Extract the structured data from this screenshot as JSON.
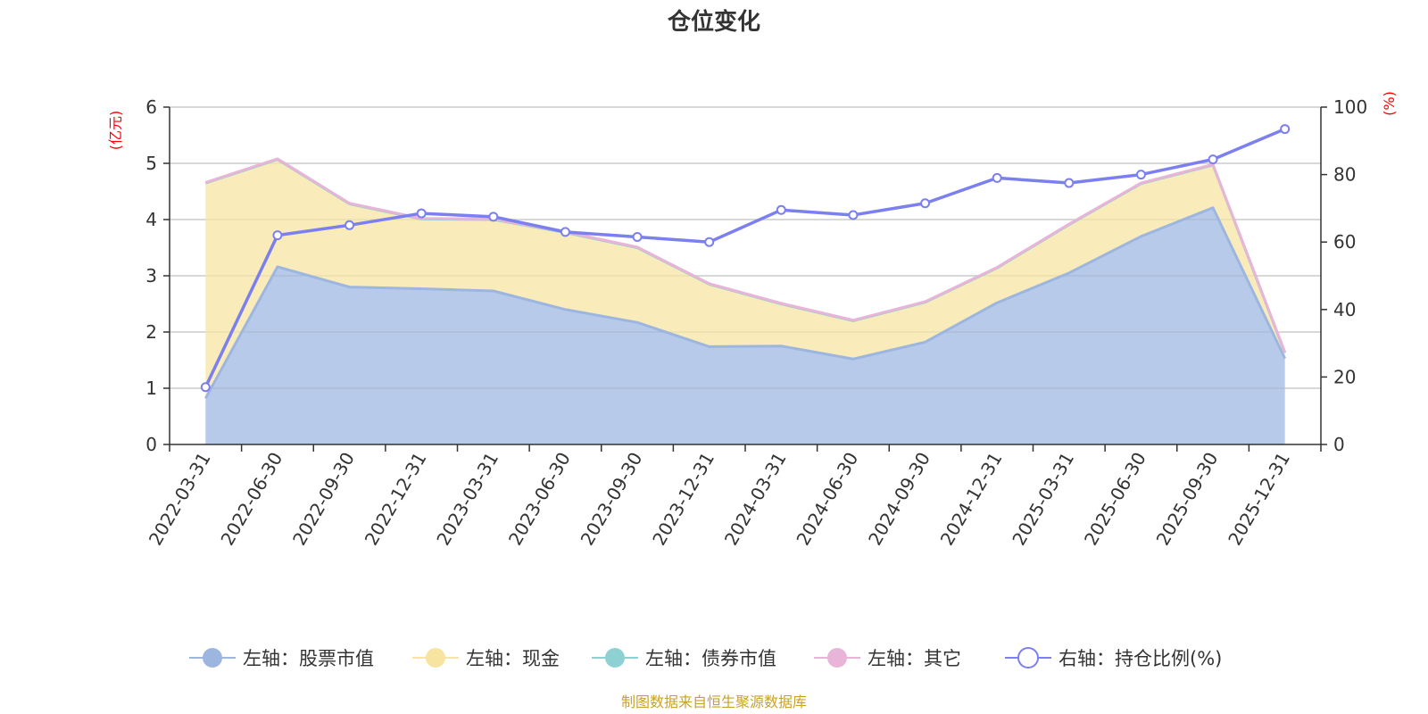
{
  "chart_data": {
    "type": "area",
    "title": "仓位变化",
    "source": "制图数据来自恒生聚源数据库",
    "categories": [
      "2022-03-31",
      "2022-06-30",
      "2022-09-30",
      "2022-12-31",
      "2023-03-31",
      "2023-06-30",
      "2023-09-30",
      "2023-12-31",
      "2024-03-31",
      "2024-06-30",
      "2024-09-30",
      "2024-12-31",
      "2025-03-31",
      "2025-06-30",
      "2025-09-30",
      "2025-12-31"
    ],
    "left_axis": {
      "unit": "(亿元)",
      "min": 0,
      "max": 6,
      "ticks": [
        0,
        1,
        2,
        3,
        4,
        5,
        6
      ]
    },
    "right_axis": {
      "unit": "(%)",
      "min": 0,
      "max": 100,
      "ticks": [
        0,
        20,
        40,
        60,
        80,
        100
      ]
    },
    "series": [
      {
        "name": "左轴：股票市值",
        "axis": "left",
        "type": "area",
        "color": "#9db6e0",
        "values": [
          0.82,
          3.16,
          2.8,
          2.77,
          2.73,
          2.4,
          2.17,
          1.74,
          1.75,
          1.52,
          1.82,
          2.52,
          3.05,
          3.7,
          4.21,
          1.53
        ]
      },
      {
        "name": "左轴：现金",
        "axis": "left",
        "type": "area",
        "color": "#f7e4a0",
        "values": [
          3.83,
          1.91,
          1.48,
          1.24,
          1.27,
          1.37,
          1.33,
          1.11,
          0.75,
          0.68,
          0.71,
          0.62,
          0.86,
          0.94,
          0.76,
          0.1
        ]
      },
      {
        "name": "左轴：债券市值",
        "axis": "left",
        "type": "area",
        "color": "#8fd0d2",
        "values": [
          0,
          0,
          0,
          0,
          0,
          0,
          0,
          0,
          0,
          0,
          0,
          0,
          0,
          0,
          0,
          0
        ]
      },
      {
        "name": "左轴：其它",
        "axis": "left",
        "type": "area",
        "color": "#e8b4d8",
        "values": [
          0.01,
          0.01,
          0.01,
          0.01,
          0.01,
          0.01,
          0.01,
          0.01,
          0.01,
          0.01,
          0.01,
          0.01,
          0.01,
          0.01,
          0.01,
          0.01
        ]
      },
      {
        "name": "右轴：持仓比例(%)",
        "axis": "right",
        "type": "line",
        "color": "#7b7ff0",
        "values": [
          17.0,
          62.0,
          65.0,
          68.5,
          67.5,
          63.0,
          61.5,
          60.0,
          69.5,
          68.0,
          71.5,
          79.0,
          77.5,
          80.0,
          84.5,
          93.5
        ]
      }
    ]
  }
}
